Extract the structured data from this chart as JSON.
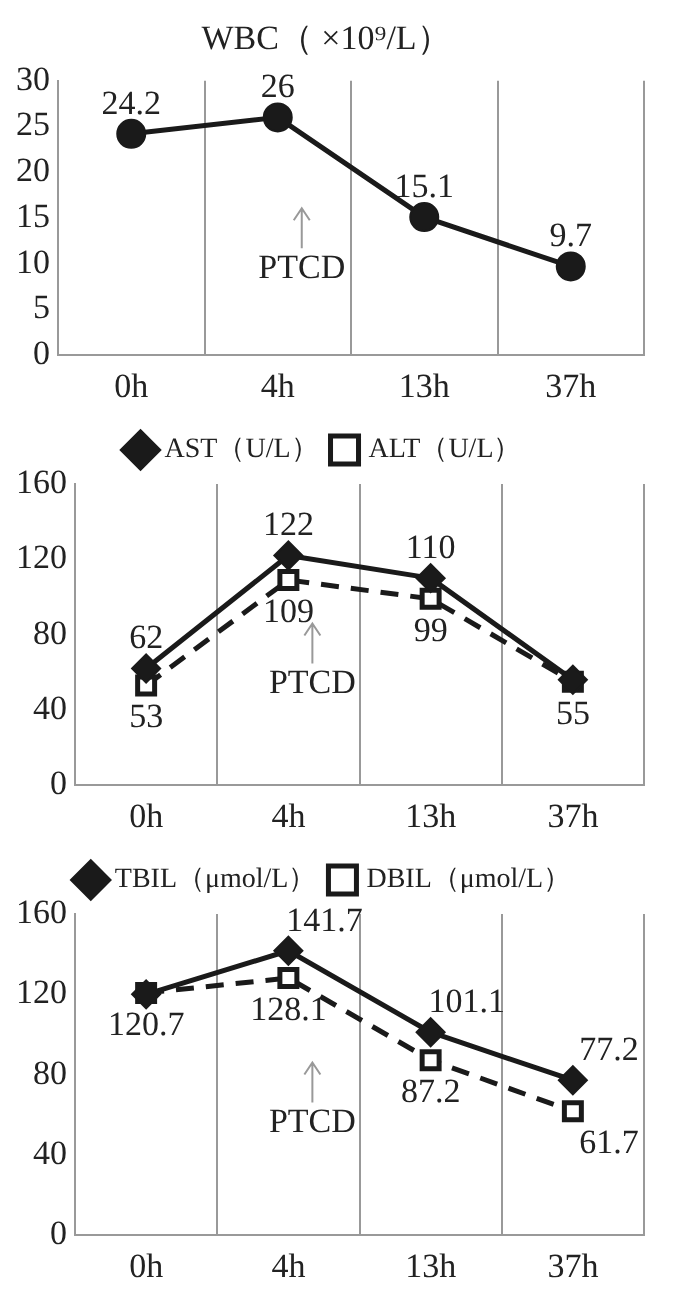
{
  "chart_data": [
    {
      "type": "line",
      "title": "WBC（ ×10⁹/L）",
      "categories": [
        "0h",
        "4h",
        "13h",
        "37h"
      ],
      "series": [
        {
          "color": "#1a1a1a",
          "values": [
            24.2,
            26,
            15.1,
            9.7
          ],
          "marker": "circle",
          "line_style": "solid"
        }
      ],
      "ylim": [
        0,
        30
      ],
      "yticks": [
        0,
        5,
        10,
        15,
        20,
        25,
        30
      ],
      "grid": "x",
      "legend": false,
      "data_labels": true,
      "annotations": [
        "PTCD"
      ]
    },
    {
      "type": "line",
      "categories": [
        "0h",
        "4h",
        "13h",
        "37h"
      ],
      "series": [
        {
          "name": "AST（U/L）",
          "color": "#1a1a1a",
          "values": [
            62,
            122,
            110,
            56
          ],
          "value_labels": [
            "62",
            "122",
            "110",
            null
          ],
          "marker": "diamond",
          "line_style": "solid"
        },
        {
          "name": "ALT（U/L）",
          "color": "#1a1a1a",
          "values": [
            53,
            109,
            99,
            55
          ],
          "value_labels": [
            "53",
            "109",
            "99",
            "55"
          ],
          "marker": "square",
          "line_style": "dashed"
        }
      ],
      "ylim": [
        0,
        160
      ],
      "yticks": [
        0,
        40,
        80,
        120,
        160
      ],
      "grid": "x",
      "legend": "top",
      "annotations": [
        "PTCD"
      ]
    },
    {
      "type": "line",
      "categories": [
        "0h",
        "4h",
        "13h",
        "37h"
      ],
      "series": [
        {
          "name": "TBIL（μmol/L）",
          "color": "#1a1a1a",
          "values": [
            120,
            141.7,
            101.1,
            77.2
          ],
          "value_labels": [
            null,
            "141.7",
            "101.1",
            "77.2"
          ],
          "marker": "diamond",
          "line_style": "solid"
        },
        {
          "name": "DBIL（μmol/L）",
          "color": "#1a1a1a",
          "values": [
            120.7,
            128.1,
            87.2,
            61.7
          ],
          "value_labels": [
            "120.7",
            "128.1",
            "87.2",
            "61.7"
          ],
          "marker": "square",
          "line_style": "dashed"
        }
      ],
      "ylim": [
        0,
        160
      ],
      "yticks": [
        0,
        40,
        80,
        120,
        160
      ],
      "grid": "x",
      "legend": "top",
      "annotations": [
        "PTCD"
      ]
    }
  ]
}
